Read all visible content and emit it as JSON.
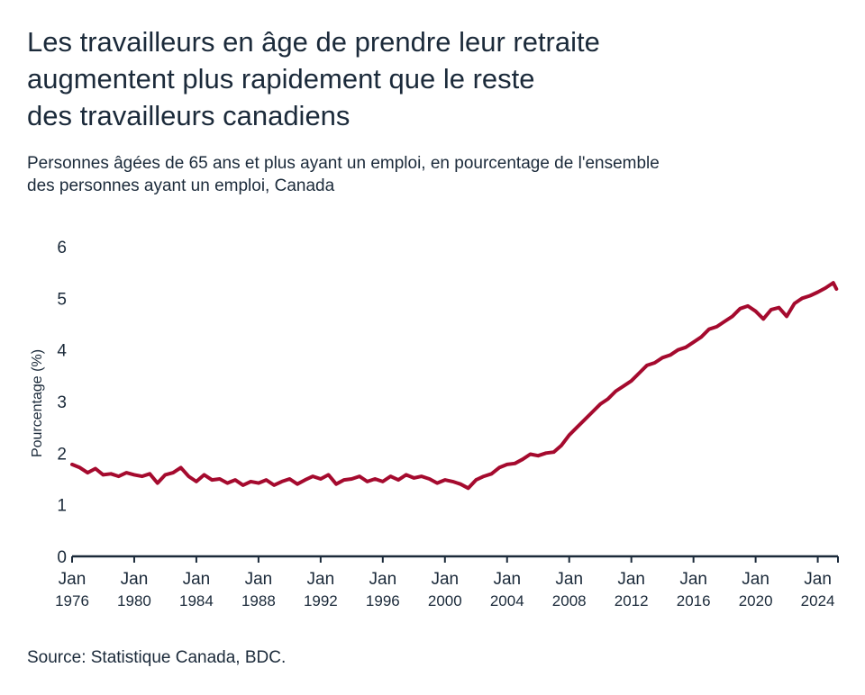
{
  "header": {
    "title_lines": [
      "Les travailleurs en âge de prendre leur retraite",
      "augmentent plus rapidement que le reste",
      "des travailleurs canadiens"
    ],
    "subtitle_lines": [
      "Personnes âgées de 65 ans et plus ayant un emploi, en pourcentage de l'ensemble",
      "des personnes ayant un emploi, Canada"
    ]
  },
  "footer": {
    "source": "Source: Statistique Canada, BDC."
  },
  "colors": {
    "line": "#a50a2e",
    "axis": "#1b2a3a",
    "text": "#1b2a3a"
  },
  "chart_data": {
    "type": "line",
    "title": "Les travailleurs en âge de prendre leur retraite augmentent plus rapidement que le reste des travailleurs canadiens",
    "subtitle": "Personnes âgées de 65 ans et plus ayant un emploi, en pourcentage de l'ensemble des personnes ayant un emploi, Canada",
    "xlabel": "",
    "ylabel": "Pourcentage (%)",
    "xlim": [
      1976.0,
      2025.3
    ],
    "ylim": [
      0,
      6
    ],
    "yticks": [
      0,
      1,
      2,
      3,
      4,
      5,
      6
    ],
    "xticks": [
      {
        "value": 1976,
        "month": "Jan",
        "year": "1976"
      },
      {
        "value": 1980,
        "month": "Jan",
        "year": "1980"
      },
      {
        "value": 1984,
        "month": "Jan",
        "year": "1984"
      },
      {
        "value": 1988,
        "month": "Jan",
        "year": "1988"
      },
      {
        "value": 1992,
        "month": "Jan",
        "year": "1992"
      },
      {
        "value": 1996,
        "month": "Jan",
        "year": "1996"
      },
      {
        "value": 2000,
        "month": "Jan",
        "year": "2000"
      },
      {
        "value": 2004,
        "month": "Jan",
        "year": "2004"
      },
      {
        "value": 2008,
        "month": "Jan",
        "year": "2008"
      },
      {
        "value": 2012,
        "month": "Jan",
        "year": "2012"
      },
      {
        "value": 2016,
        "month": "Jan",
        "year": "2016"
      },
      {
        "value": 2020,
        "month": "Jan",
        "year": "2020"
      },
      {
        "value": 2024,
        "month": "Jan",
        "year": "2024"
      }
    ],
    "grid": false,
    "legend": "none",
    "series": [
      {
        "x": [
          1976.0,
          1976.5,
          1977.0,
          1977.5,
          1978.0,
          1978.5,
          1979.0,
          1979.5,
          1980.0,
          1980.5,
          1981.0,
          1981.5,
          1982.0,
          1982.5,
          1983.0,
          1983.5,
          1984.0,
          1984.5,
          1985.0,
          1985.5,
          1986.0,
          1986.5,
          1987.0,
          1987.5,
          1988.0,
          1988.5,
          1989.0,
          1989.5,
          1990.0,
          1990.5,
          1991.0,
          1991.5,
          1992.0,
          1992.5,
          1993.0,
          1993.5,
          1994.0,
          1994.5,
          1995.0,
          1995.5,
          1996.0,
          1996.5,
          1997.0,
          1997.5,
          1998.0,
          1998.5,
          1999.0,
          1999.5,
          2000.0,
          2000.5,
          2001.0,
          2001.5,
          2002.0,
          2002.5,
          2003.0,
          2003.5,
          2004.0,
          2004.5,
          2005.0,
          2005.5,
          2006.0,
          2006.5,
          2007.0,
          2007.5,
          2008.0,
          2008.5,
          2009.0,
          2009.5,
          2010.0,
          2010.5,
          2011.0,
          2011.5,
          2012.0,
          2012.5,
          2013.0,
          2013.5,
          2014.0,
          2014.5,
          2015.0,
          2015.5,
          2016.0,
          2016.5,
          2017.0,
          2017.5,
          2018.0,
          2018.5,
          2019.0,
          2019.5,
          2020.0,
          2020.5,
          2021.0,
          2021.5,
          2022.0,
          2022.5,
          2023.0,
          2023.5,
          2024.0,
          2024.5,
          2025.0,
          2025.2
        ],
        "values": [
          1.78,
          1.72,
          1.62,
          1.7,
          1.58,
          1.6,
          1.55,
          1.62,
          1.58,
          1.55,
          1.6,
          1.42,
          1.58,
          1.62,
          1.72,
          1.55,
          1.45,
          1.58,
          1.48,
          1.5,
          1.42,
          1.48,
          1.38,
          1.45,
          1.42,
          1.48,
          1.38,
          1.45,
          1.5,
          1.4,
          1.48,
          1.55,
          1.5,
          1.58,
          1.4,
          1.48,
          1.5,
          1.55,
          1.45,
          1.5,
          1.45,
          1.55,
          1.48,
          1.58,
          1.52,
          1.55,
          1.5,
          1.42,
          1.48,
          1.45,
          1.4,
          1.32,
          1.48,
          1.55,
          1.6,
          1.72,
          1.78,
          1.8,
          1.88,
          1.98,
          1.95,
          2.0,
          2.02,
          2.15,
          2.35,
          2.5,
          2.65,
          2.8,
          2.95,
          3.05,
          3.2,
          3.3,
          3.4,
          3.55,
          3.7,
          3.75,
          3.85,
          3.9,
          4.0,
          4.05,
          4.15,
          4.25,
          4.4,
          4.45,
          4.55,
          4.65,
          4.8,
          4.85,
          4.75,
          4.6,
          4.78,
          4.82,
          4.65,
          4.9,
          5.0,
          5.05,
          5.12,
          5.2,
          5.3,
          5.18
        ]
      }
    ]
  }
}
